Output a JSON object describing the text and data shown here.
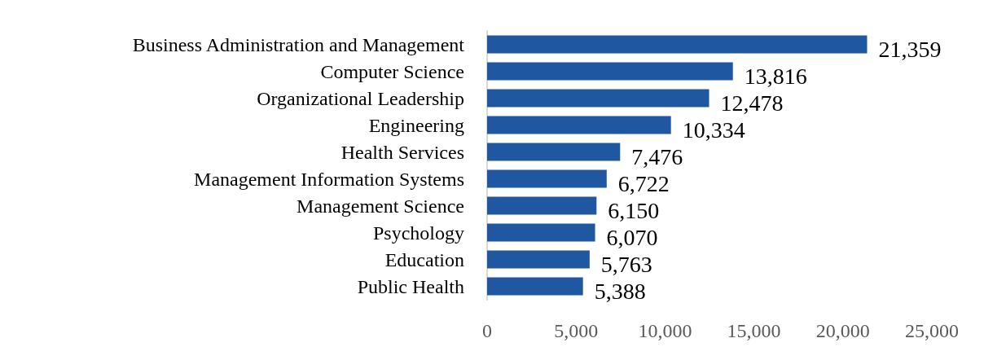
{
  "chart_data": {
    "type": "bar",
    "orientation": "horizontal",
    "categories": [
      "Business Administration and Management",
      "Computer Science",
      "Organizational Leadership",
      "Engineering",
      "Health Services",
      "Management Information Systems",
      "Management Science",
      "Psychology",
      "Education",
      "Public Health"
    ],
    "values": [
      21359,
      13816,
      12478,
      10334,
      7476,
      6722,
      6150,
      6070,
      5763,
      5388
    ],
    "color": "#1f58a0",
    "value_labels": [
      "21,359",
      "13,816",
      "12,478",
      "10,334",
      "7,476",
      "6,722",
      "6,150",
      "6,070",
      "5,763",
      "5,388"
    ],
    "xlim": [
      0,
      25000
    ],
    "xticks": [
      0,
      {
        "value": 5000,
        "label": "5,000"
      },
      {
        "value": 10000,
        "label": "10,000"
      },
      {
        "value": 15000,
        "label": "15,000"
      },
      {
        "value": 20000,
        "label": "20,000"
      },
      {
        "value": 25000,
        "label": "25,000"
      }
    ],
    "grid": false
  }
}
